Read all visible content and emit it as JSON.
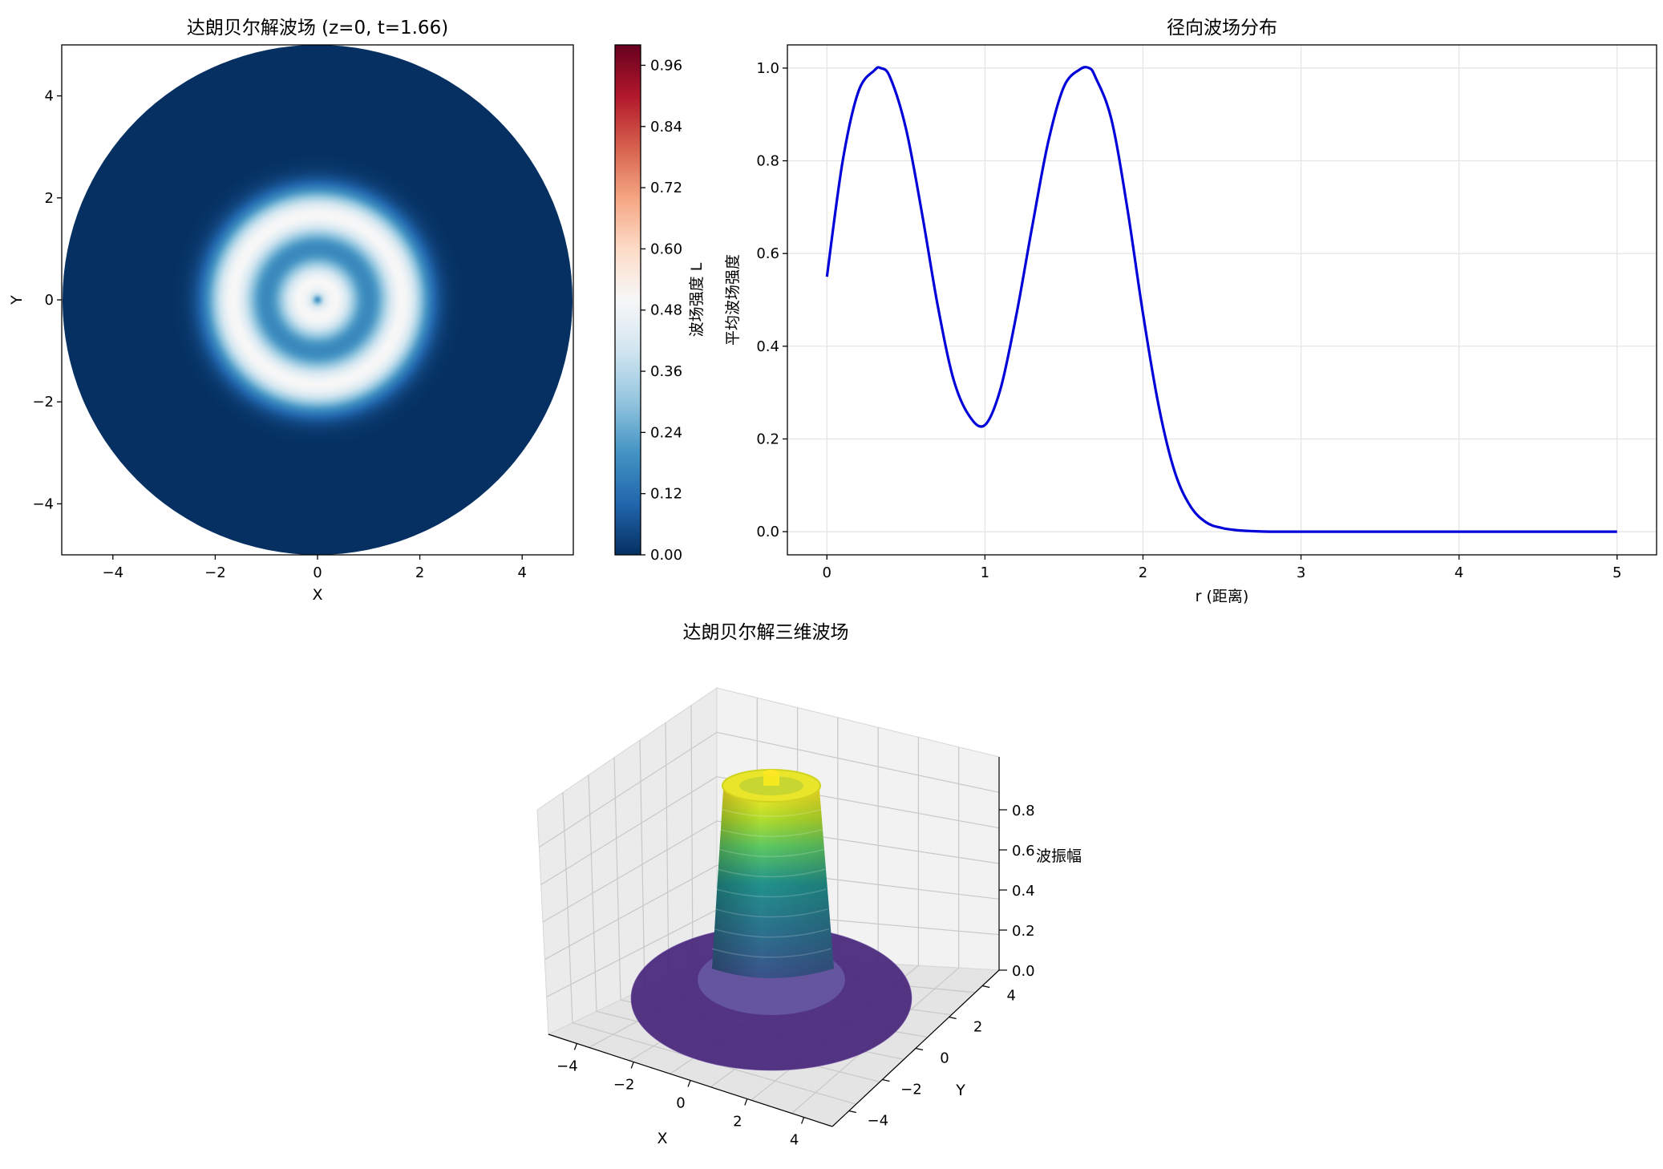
{
  "chart_data": [
    {
      "type": "heatmap",
      "title": "达朗贝尔解波场 (z=0, t=1.66)",
      "xlabel": "X",
      "ylabel": "Y",
      "xlim": [
        -5,
        5
      ],
      "ylim": [
        -5,
        5
      ],
      "xticks": [
        "−4",
        "−2",
        "0",
        "2",
        "4"
      ],
      "yticks": [
        "−4",
        "−2",
        "0",
        "2",
        "4"
      ],
      "colormap": "RdBu_r",
      "colorbar": {
        "label": "波场强度 L",
        "range": [
          0,
          1
        ],
        "ticks": [
          "0.00",
          "0.12",
          "0.24",
          "0.36",
          "0.48",
          "0.60",
          "0.72",
          "0.84",
          "0.96"
        ]
      },
      "domain_radius": 5,
      "wave_time": 1.66,
      "rings": [
        {
          "r": 0.34,
          "value": 1.0
        },
        {
          "r": 1.0,
          "value": 0.23
        },
        {
          "r": 1.66,
          "value": 1.0
        }
      ]
    },
    {
      "type": "line",
      "title": "径向波场分布",
      "xlabel": "r (距离)",
      "ylabel": "平均波场强度",
      "xlim": [
        -0.25,
        5.25
      ],
      "ylim": [
        -0.05,
        1.05
      ],
      "xticks": [
        "0",
        "1",
        "2",
        "3",
        "4",
        "5"
      ],
      "yticks": [
        "0.0",
        "0.2",
        "0.4",
        "0.6",
        "0.8",
        "1.0"
      ],
      "grid": true,
      "series": [
        {
          "color": "#0000d8",
          "x": [
            0,
            0.1,
            0.2,
            0.3,
            0.34,
            0.4,
            0.5,
            0.6,
            0.7,
            0.8,
            0.9,
            1.0,
            1.1,
            1.2,
            1.3,
            1.4,
            1.5,
            1.6,
            1.66,
            1.7,
            1.8,
            1.9,
            2.0,
            2.1,
            2.2,
            2.3,
            2.4,
            2.5,
            2.6,
            2.7,
            2.8,
            2.9,
            3.0,
            3.5,
            4.0,
            4.5,
            5.0
          ],
          "y": [
            0.55,
            0.8,
            0.95,
            0.995,
            1.0,
            0.98,
            0.87,
            0.69,
            0.49,
            0.33,
            0.25,
            0.23,
            0.31,
            0.47,
            0.66,
            0.84,
            0.96,
            0.997,
            1.0,
            0.98,
            0.89,
            0.7,
            0.47,
            0.27,
            0.13,
            0.055,
            0.02,
            0.008,
            0.003,
            0.001,
            0.0,
            0.0,
            0.0,
            0.0,
            0.0,
            0.0,
            0.0
          ]
        }
      ]
    },
    {
      "type": "surface",
      "title": "达朗贝尔解三维波场",
      "xlabel": "X",
      "ylabel": "Y",
      "zlabel": "波振幅",
      "xticks": [
        "−4",
        "−2",
        "0",
        "2",
        "4"
      ],
      "yticks": [
        "−4",
        "−2",
        "0",
        "2",
        "4"
      ],
      "zticks": [
        "0.0",
        "0.2",
        "0.4",
        "0.6",
        "0.8"
      ],
      "colormap": "viridis"
    }
  ]
}
